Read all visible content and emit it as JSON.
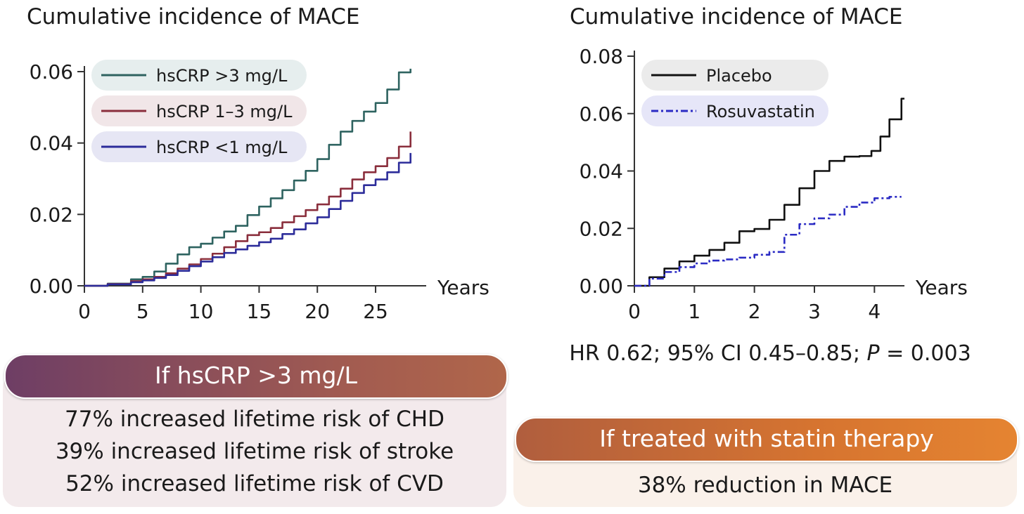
{
  "chart_data": [
    {
      "type": "line",
      "title": "Cumulative incidence of MACE",
      "xlabel": "Years",
      "ylabel": "",
      "xlim": [
        0,
        28.5
      ],
      "ylim": [
        0,
        0.06
      ],
      "xticks": [
        0,
        5,
        10,
        15,
        20,
        25
      ],
      "yticks": [
        "0.00",
        "0.02",
        "0.04",
        "0.06"
      ],
      "legend_position": "top-left",
      "series": [
        {
          "name": "hsCRP >3 mg/L",
          "color": "#2e6360",
          "legend_bg": "#e6eeee",
          "style": "solid",
          "x": [
            0,
            2,
            4,
            5,
            6,
            7,
            8,
            9,
            10,
            11,
            12,
            13,
            14,
            15,
            16,
            17,
            18,
            19,
            20,
            21,
            22,
            23,
            24,
            25,
            26,
            27,
            28
          ],
          "y": [
            0,
            0.0006,
            0.0018,
            0.0025,
            0.004,
            0.0062,
            0.0088,
            0.0108,
            0.0118,
            0.0135,
            0.0152,
            0.0168,
            0.0198,
            0.0222,
            0.0245,
            0.0268,
            0.0295,
            0.0322,
            0.0355,
            0.0395,
            0.0432,
            0.0462,
            0.0488,
            0.0512,
            0.055,
            0.0598,
            0.0608
          ]
        },
        {
          "name": "hsCRP 1–3 mg/L",
          "color": "#8a2e3c",
          "legend_bg": "#f1e6e8",
          "style": "solid",
          "x": [
            0,
            2,
            4,
            5,
            6,
            7,
            8,
            9,
            10,
            11,
            12,
            13,
            14,
            15,
            16,
            17,
            18,
            19,
            20,
            21,
            22,
            23,
            24,
            25,
            26,
            27,
            28
          ],
          "y": [
            0,
            0.0005,
            0.0013,
            0.0018,
            0.0025,
            0.0035,
            0.0048,
            0.006,
            0.0075,
            0.009,
            0.0108,
            0.0125,
            0.0142,
            0.015,
            0.0162,
            0.0178,
            0.0195,
            0.0212,
            0.0228,
            0.025,
            0.0272,
            0.0298,
            0.0318,
            0.0335,
            0.0358,
            0.039,
            0.0432
          ]
        },
        {
          "name": "hsCRP <1 mg/L",
          "color": "#2c2c9a",
          "legend_bg": "#e6e6f4",
          "style": "solid",
          "x": [
            0,
            2,
            4,
            5,
            6,
            7,
            8,
            9,
            10,
            11,
            12,
            13,
            14,
            15,
            16,
            17,
            18,
            19,
            20,
            21,
            22,
            23,
            24,
            25,
            26,
            27,
            28
          ],
          "y": [
            0,
            0.0004,
            0.001,
            0.0015,
            0.0022,
            0.003,
            0.0042,
            0.0055,
            0.0068,
            0.008,
            0.0092,
            0.0102,
            0.0112,
            0.0122,
            0.0132,
            0.0145,
            0.0158,
            0.0175,
            0.0192,
            0.0215,
            0.0238,
            0.026,
            0.0282,
            0.0298,
            0.0318,
            0.0345,
            0.0372
          ]
        }
      ]
    },
    {
      "type": "line",
      "title": "Cumulative incidence of MACE",
      "xlabel": "Years",
      "ylabel": "",
      "xlim": [
        0,
        4.5
      ],
      "ylim": [
        0,
        0.08
      ],
      "xticks": [
        0,
        1,
        2,
        3,
        4
      ],
      "yticks": [
        "0.00",
        "0.02",
        "0.04",
        "0.06",
        "0.08"
      ],
      "legend_position": "top-left",
      "series": [
        {
          "name": "Placebo",
          "color": "#111111",
          "legend_bg": "#ebebeb",
          "style": "solid",
          "x": [
            0,
            0.25,
            0.5,
            0.75,
            1.0,
            1.25,
            1.5,
            1.75,
            2.0,
            2.25,
            2.5,
            2.75,
            3.0,
            3.25,
            3.5,
            3.75,
            3.95,
            4.1,
            4.25,
            4.45,
            4.5
          ],
          "y": [
            0,
            0.003,
            0.006,
            0.0085,
            0.0105,
            0.0125,
            0.015,
            0.019,
            0.0198,
            0.023,
            0.0282,
            0.034,
            0.04,
            0.0435,
            0.045,
            0.0452,
            0.047,
            0.052,
            0.058,
            0.0652,
            0.0652
          ]
        },
        {
          "name": "Rosuvastatin",
          "color": "#2b2bc4",
          "legend_bg": "#e6e6f8",
          "style": "dashdot",
          "x": [
            0,
            0.25,
            0.5,
            0.75,
            1.0,
            1.25,
            1.5,
            1.75,
            2.0,
            2.25,
            2.5,
            2.75,
            3.0,
            3.25,
            3.5,
            3.75,
            4.0,
            4.25,
            4.45
          ],
          "y": [
            0,
            0.0025,
            0.0048,
            0.0065,
            0.0078,
            0.0088,
            0.0092,
            0.0098,
            0.0108,
            0.0118,
            0.0178,
            0.0215,
            0.0235,
            0.0248,
            0.0275,
            0.029,
            0.0305,
            0.031,
            0.031
          ]
        }
      ]
    }
  ],
  "stats_text": {
    "prefix": "HR 0.62; 95% CI 0.45–0.85; ",
    "p_letter": "P",
    "suffix": " = 0.003"
  },
  "box_left": {
    "pill_label": "If hsCRP >3 mg/L",
    "lines": [
      "77% increased lifetime risk of CHD",
      "39% increased lifetime risk of stroke",
      "52% increased lifetime risk of CVD"
    ]
  },
  "box_right": {
    "pill_label": "If treated with statin therapy",
    "lines": [
      "38% reduction in MACE"
    ]
  }
}
